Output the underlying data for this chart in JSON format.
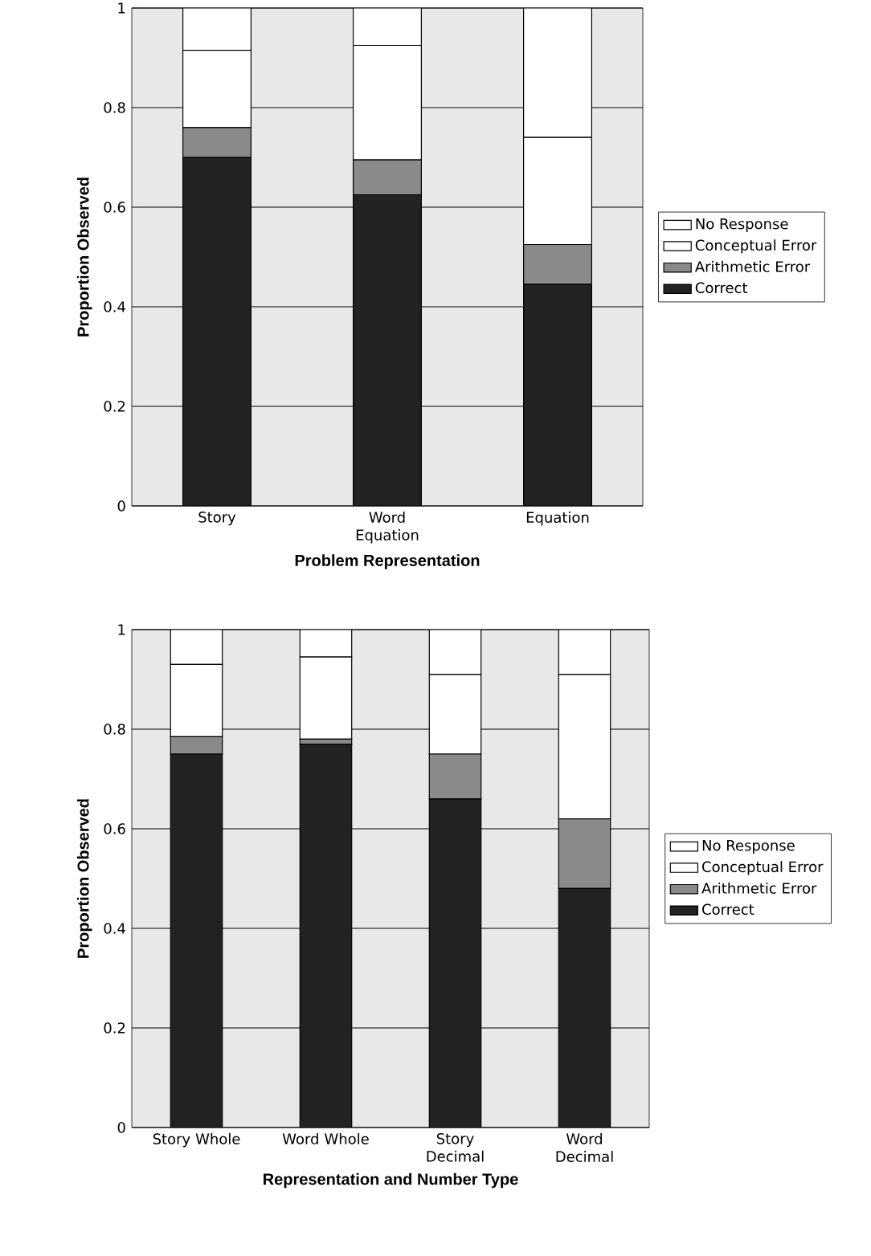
{
  "chart_data": [
    {
      "type": "bar",
      "stacked": true,
      "xlabel": "Problem Representation",
      "ylabel": "Proportion Observed",
      "categories": [
        "Story",
        "Word Equation",
        "Equation"
      ],
      "ylim": [
        0,
        1
      ],
      "yticks": [
        0,
        0.2,
        0.4,
        0.6,
        0.8,
        1
      ],
      "grid": "y",
      "legend": "right",
      "series": [
        {
          "name": "Correct",
          "color": "#222222",
          "values": [
            0.7,
            0.625,
            0.445
          ]
        },
        {
          "name": "Arithmetic Error",
          "color": "#8a8a8a",
          "values": [
            0.06,
            0.07,
            0.08
          ]
        },
        {
          "name": "Conceptual Error",
          "color": "#ffffff",
          "values": [
            0.155,
            0.23,
            0.215
          ]
        },
        {
          "name": "No Response",
          "color": "#ffffff",
          "values": [
            0.085,
            0.075,
            0.26
          ]
        }
      ]
    },
    {
      "type": "bar",
      "stacked": true,
      "xlabel": "Representation and Number Type",
      "ylabel": "Proportion Observed",
      "categories": [
        "Story Whole",
        "Word Whole",
        "Story Decimal",
        "Word Decimal"
      ],
      "ylim": [
        0,
        1
      ],
      "yticks": [
        0,
        0.2,
        0.4,
        0.6,
        0.8,
        1
      ],
      "grid": "y",
      "legend": "right",
      "series": [
        {
          "name": "Correct",
          "color": "#222222",
          "values": [
            0.75,
            0.77,
            0.66,
            0.48
          ]
        },
        {
          "name": "Arithmetic Error",
          "color": "#8a8a8a",
          "values": [
            0.035,
            0.01,
            0.09,
            0.14
          ]
        },
        {
          "name": "Conceptual Error",
          "color": "#ffffff",
          "values": [
            0.145,
            0.165,
            0.16,
            0.29
          ]
        },
        {
          "name": "No Response",
          "color": "#ffffff",
          "values": [
            0.07,
            0.055,
            0.09,
            0.09
          ]
        }
      ]
    }
  ]
}
